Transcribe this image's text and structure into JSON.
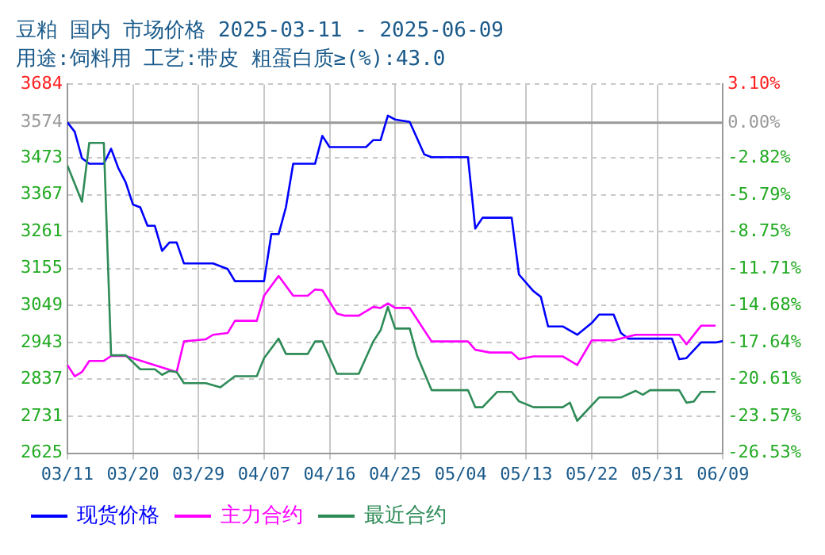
{
  "chart_data": {
    "type": "line",
    "title": "豆粕 国内 市场价格 2025-03-11 - 2025-06-09",
    "subtitle": "用途:饲料用 工艺:带皮 粗蛋白质≥(%):43.0",
    "xlim": [
      "2025-03-11",
      "2025-06-09"
    ],
    "xticks": [
      {
        "value": "2025-03-11",
        "label": "03/11"
      },
      {
        "value": "2025-03-20",
        "label": "03/20"
      },
      {
        "value": "2025-03-29",
        "label": "03/29"
      },
      {
        "value": "2025-04-07",
        "label": "04/07"
      },
      {
        "value": "2025-04-16",
        "label": "04/16"
      },
      {
        "value": "2025-04-25",
        "label": "04/25"
      },
      {
        "value": "2025-05-04",
        "label": "05/04"
      },
      {
        "value": "2025-05-13",
        "label": "05/13"
      },
      {
        "value": "2025-05-22",
        "label": "05/22"
      },
      {
        "value": "2025-05-31",
        "label": "05/31"
      },
      {
        "value": "2025-06-09",
        "label": "06/09"
      }
    ],
    "ylim": [
      2625,
      3684
    ],
    "yticks": [
      2625,
      2731,
      2837,
      2943,
      3049,
      3155,
      3261,
      3367,
      3473,
      3574,
      3684
    ],
    "y2lim": [
      -26.53,
      3.1
    ],
    "y2ticks": [
      {
        "value": -26.53,
        "label": "-26.53%"
      },
      {
        "value": -23.57,
        "label": "-23.57%"
      },
      {
        "value": -20.61,
        "label": "-20.61%"
      },
      {
        "value": -17.64,
        "label": "-17.64%"
      },
      {
        "value": -14.68,
        "label": "-14.68%"
      },
      {
        "value": -11.71,
        "label": "-11.71%"
      },
      {
        "value": -8.75,
        "label": "-8.75%"
      },
      {
        "value": -5.79,
        "label": "-5.79%"
      },
      {
        "value": -2.82,
        "label": "-2.82%"
      },
      {
        "value": 0,
        "label": "0.00%"
      },
      {
        "value": 3.1,
        "label": "3.10%"
      }
    ],
    "ref_lines": [
      {
        "axis": "y",
        "value": 3574,
        "color": "#999999"
      }
    ],
    "grid": true,
    "legend": "bottom",
    "marker": "none",
    "line_style": "solid",
    "series": [
      {
        "name": "现货价格",
        "color": "#0000ff",
        "x": [
          "2025-03-11",
          "2025-03-12",
          "2025-03-13",
          "2025-03-14",
          "2025-03-16",
          "2025-03-17",
          "2025-03-18",
          "2025-03-19",
          "2025-03-20",
          "2025-03-21",
          "2025-03-22",
          "2025-03-23",
          "2025-03-24",
          "2025-03-25",
          "2025-03-26",
          "2025-03-27",
          "2025-03-31",
          "2025-04-02",
          "2025-04-03",
          "2025-04-07",
          "2025-04-08",
          "2025-04-09",
          "2025-04-10",
          "2025-04-11",
          "2025-04-14",
          "2025-04-15",
          "2025-04-16",
          "2025-04-21",
          "2025-04-22",
          "2025-04-23",
          "2025-04-24",
          "2025-04-25",
          "2025-04-27",
          "2025-04-29",
          "2025-04-30",
          "2025-05-05",
          "2025-05-06",
          "2025-05-07",
          "2025-05-11",
          "2025-05-12",
          "2025-05-14",
          "2025-05-15",
          "2025-05-16",
          "2025-05-18",
          "2025-05-20",
          "2025-05-22",
          "2025-05-23",
          "2025-05-25",
          "2025-05-26",
          "2025-05-27",
          "2025-06-02",
          "2025-06-03",
          "2025-06-04",
          "2025-06-06",
          "2025-06-08",
          "2025-06-09"
        ],
        "values": [
          3575,
          3548,
          3472,
          3456,
          3456,
          3499,
          3443,
          3403,
          3339,
          3331,
          3278,
          3278,
          3206,
          3230,
          3230,
          3170,
          3170,
          3154,
          3119,
          3119,
          3254,
          3254,
          3331,
          3456,
          3456,
          3536,
          3504,
          3504,
          3524,
          3524,
          3594,
          3583,
          3576,
          3483,
          3475,
          3475,
          3270,
          3301,
          3301,
          3138,
          3090,
          3074,
          2989,
          2989,
          2965,
          2999,
          3023,
          3023,
          2970,
          2954,
          2954,
          2895,
          2898,
          2943,
          2943,
          2947
        ]
      },
      {
        "name": "主力合约",
        "color": "#ff00ff",
        "x": [
          "2025-03-11",
          "2025-03-12",
          "2025-03-13",
          "2025-03-14",
          "2025-03-16",
          "2025-03-17",
          "2025-03-19",
          "2025-03-26",
          "2025-03-27",
          "2025-03-30",
          "2025-03-31",
          "2025-04-02",
          "2025-04-03",
          "2025-04-06",
          "2025-04-07",
          "2025-04-09",
          "2025-04-11",
          "2025-04-13",
          "2025-04-14",
          "2025-04-15",
          "2025-04-17",
          "2025-04-18",
          "2025-04-20",
          "2025-04-22",
          "2025-04-23",
          "2025-04-24",
          "2025-04-25",
          "2025-04-27",
          "2025-04-30",
          "2025-05-05",
          "2025-05-06",
          "2025-05-08",
          "2025-05-11",
          "2025-05-12",
          "2025-05-14",
          "2025-05-18",
          "2025-05-20",
          "2025-05-22",
          "2025-05-25",
          "2025-05-28",
          "2025-06-03",
          "2025-06-04",
          "2025-06-06",
          "2025-06-08"
        ],
        "values": [
          2878,
          2846,
          2858,
          2890,
          2890,
          2904,
          2904,
          2858,
          2946,
          2952,
          2965,
          2970,
          3005,
          3005,
          3077,
          3134,
          3077,
          3077,
          3095,
          3093,
          3026,
          3020,
          3020,
          3045,
          3042,
          3055,
          3042,
          3042,
          2946,
          2946,
          2922,
          2914,
          2914,
          2895,
          2903,
          2903,
          2878,
          2949,
          2949,
          2965,
          2965,
          2938,
          2991,
          2991
        ]
      },
      {
        "name": "最近合约",
        "color": "#2e8b57",
        "x": [
          "2025-03-11",
          "2025-03-13",
          "2025-03-14",
          "2025-03-16",
          "2025-03-17",
          "2025-03-19",
          "2025-03-21",
          "2025-03-23",
          "2025-03-24",
          "2025-03-25",
          "2025-03-26",
          "2025-03-27",
          "2025-03-30",
          "2025-04-01",
          "2025-04-03",
          "2025-04-06",
          "2025-04-07",
          "2025-04-09",
          "2025-04-10",
          "2025-04-13",
          "2025-04-14",
          "2025-04-15",
          "2025-04-17",
          "2025-04-20",
          "2025-04-22",
          "2025-04-23",
          "2025-04-24",
          "2025-04-25",
          "2025-04-27",
          "2025-04-28",
          "2025-04-30",
          "2025-05-05",
          "2025-05-06",
          "2025-05-07",
          "2025-05-09",
          "2025-05-11",
          "2025-05-12",
          "2025-05-14",
          "2025-05-18",
          "2025-05-19",
          "2025-05-20",
          "2025-05-23",
          "2025-05-26",
          "2025-05-28",
          "2025-05-29",
          "2025-05-30",
          "2025-06-03",
          "2025-06-04",
          "2025-06-05",
          "2025-06-06",
          "2025-06-08"
        ],
        "values": [
          3451,
          3347,
          3516,
          3516,
          2906,
          2906,
          2866,
          2866,
          2850,
          2861,
          2858,
          2826,
          2826,
          2814,
          2846,
          2846,
          2898,
          2954,
          2910,
          2910,
          2946,
          2946,
          2853,
          2853,
          2946,
          2978,
          3045,
          2983,
          2983,
          2906,
          2806,
          2806,
          2757,
          2757,
          2801,
          2801,
          2774,
          2757,
          2757,
          2770,
          2718,
          2785,
          2785,
          2804,
          2793,
          2806,
          2806,
          2770,
          2773,
          2801,
          2801
        ]
      }
    ]
  }
}
